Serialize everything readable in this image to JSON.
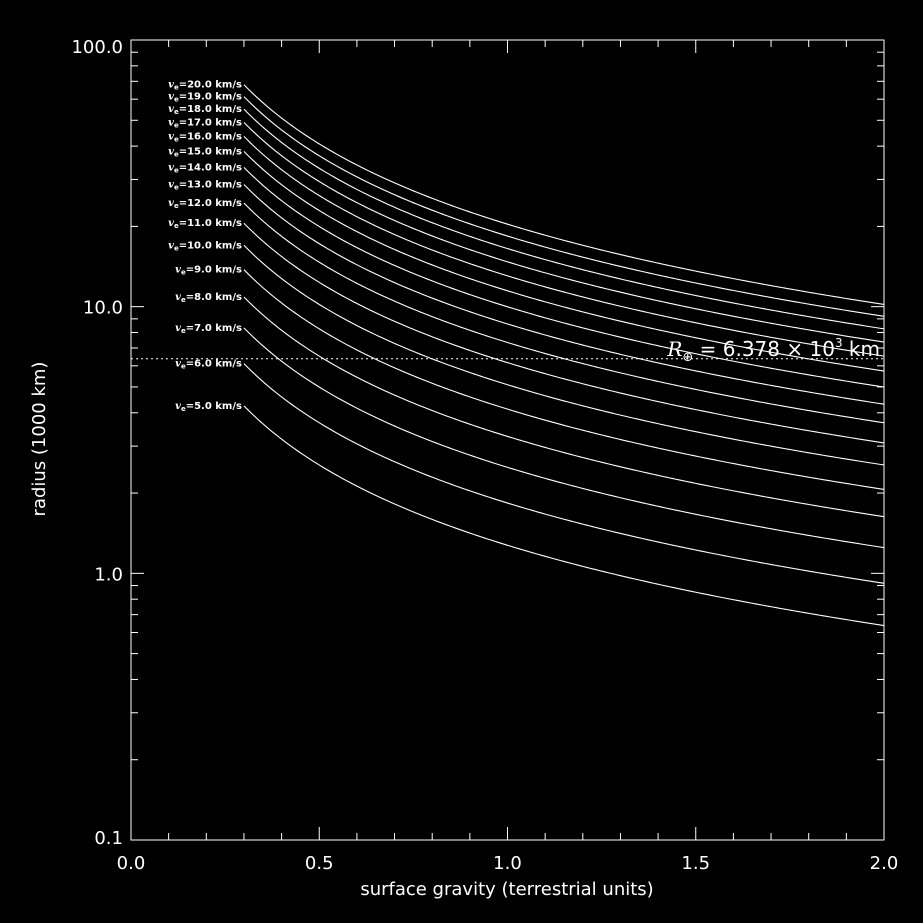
{
  "chart_data": {
    "type": "line",
    "title": "",
    "xlabel": "surface gravity (terrestrial units)",
    "ylabel": "radius (1000 km)",
    "xlim": [
      0.0,
      2.0
    ],
    "ylim": [
      0.1,
      100.0
    ],
    "yscale": "log",
    "x_ticks": [
      "0.0",
      "0.5",
      "1.0",
      "1.5",
      "2.0"
    ],
    "y_ticks": [
      "0.1",
      "1.0",
      "10.0",
      "100.0"
    ],
    "grid": false,
    "background": "#000000",
    "foreground": "#ffffff",
    "x_start": 0.3,
    "formula": "R = v_e^2 / (2 g)",
    "series": [
      {
        "name": "v_e=5.0 km/s",
        "label_prefix": "v",
        "label_sub": "e",
        "label_value": "=5.0 km/s",
        "ve": 5.0
      },
      {
        "name": "v_e=6.0 km/s",
        "label_prefix": "v",
        "label_sub": "e",
        "label_value": "=6.0 km/s",
        "ve": 6.0
      },
      {
        "name": "v_e=7.0 km/s",
        "label_prefix": "v",
        "label_sub": "e",
        "label_value": "=7.0 km/s",
        "ve": 7.0
      },
      {
        "name": "v_e=8.0 km/s",
        "label_prefix": "v",
        "label_sub": "e",
        "label_value": "=8.0 km/s",
        "ve": 8.0
      },
      {
        "name": "v_e=9.0 km/s",
        "label_prefix": "v",
        "label_sub": "e",
        "label_value": "=9.0 km/s",
        "ve": 9.0
      },
      {
        "name": "v_e=10.0 km/s",
        "label_prefix": "v",
        "label_sub": "e",
        "label_value": "=10.0 km/s",
        "ve": 10.0
      },
      {
        "name": "v_e=11.0 km/s",
        "label_prefix": "v",
        "label_sub": "e",
        "label_value": "=11.0 km/s",
        "ve": 11.0
      },
      {
        "name": "v_e=12.0 km/s",
        "label_prefix": "v",
        "label_sub": "e",
        "label_value": "=12.0 km/s",
        "ve": 12.0
      },
      {
        "name": "v_e=13.0 km/s",
        "label_prefix": "v",
        "label_sub": "e",
        "label_value": "=13.0 km/s",
        "ve": 13.0
      },
      {
        "name": "v_e=14.0 km/s",
        "label_prefix": "v",
        "label_sub": "e",
        "label_value": "=14.0 km/s",
        "ve": 14.0
      },
      {
        "name": "v_e=15.0 km/s",
        "label_prefix": "v",
        "label_sub": "e",
        "label_value": "=15.0 km/s",
        "ve": 15.0
      },
      {
        "name": "v_e=16.0 km/s",
        "label_prefix": "v",
        "label_sub": "e",
        "label_value": "=16.0 km/s",
        "ve": 16.0
      },
      {
        "name": "v_e=17.0 km/s",
        "label_prefix": "v",
        "label_sub": "e",
        "label_value": "=17.0 km/s",
        "ve": 17.0
      },
      {
        "name": "v_e=18.0 km/s",
        "label_prefix": "v",
        "label_sub": "e",
        "label_value": "=18.0 km/s",
        "ve": 18.0
      },
      {
        "name": "v_e=19.0 km/s",
        "label_prefix": "v",
        "label_sub": "e",
        "label_value": "=19.0 km/s",
        "ve": 19.0
      },
      {
        "name": "v_e=20.0 km/s",
        "label_prefix": "v",
        "label_sub": "e",
        "label_value": "=20.0 km/s",
        "ve": 20.0
      }
    ],
    "reference_line": {
      "y": 6.378,
      "style": "dotted",
      "label_symbol": "R",
      "label_sub": "⊕",
      "label_rest": " = 6.378 × 10",
      "label_exp": "3",
      "label_unit": " km"
    }
  }
}
